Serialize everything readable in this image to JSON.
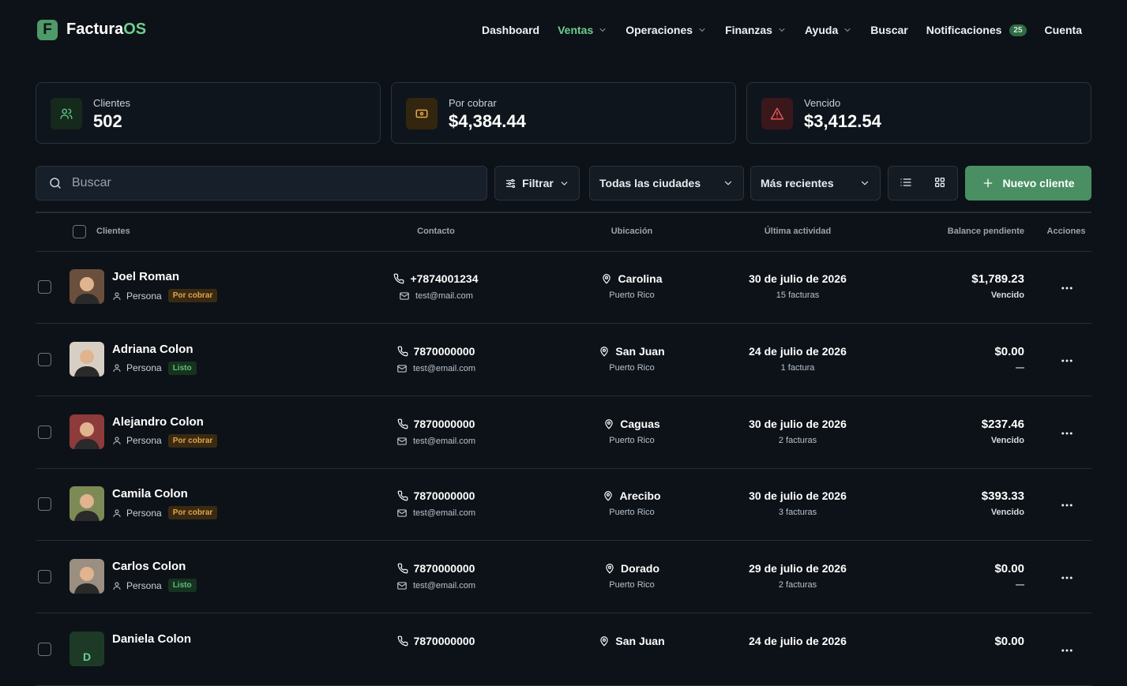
{
  "header": {
    "logo_mark": "F",
    "logo_text": "Factura",
    "logo_accent": "OS",
    "nav": [
      "Dashboard",
      "Ventas",
      "Operaciones",
      "Finanzas",
      "Ayuda",
      "Buscar",
      "Notificaciones",
      "Cuenta"
    ],
    "notifications_badge": "25"
  },
  "stats": [
    {
      "label": "Clientes",
      "value": "502",
      "color": "#5cc07a",
      "bg": "#15291d"
    },
    {
      "label": "Por cobrar",
      "value": "$4,384.44",
      "color": "#e0a54a",
      "bg": "#33260f"
    },
    {
      "label": "Vencido",
      "value": "$3,412.54",
      "color": "#e2585b",
      "bg": "#3a171b"
    }
  ],
  "toolbar": {
    "search": "Buscar",
    "filter": "Filtrar",
    "city": "Todas las ciudades",
    "sort": "Más recientes",
    "new_button": "Nuevo cliente"
  },
  "table": {
    "columns": [
      "Clientes",
      "Contacto",
      "Ubicación",
      "Última actividad",
      "Balance pendiente",
      "Acciones"
    ],
    "rows": [
      {
        "name": "Joel Roman",
        "type": "Persona",
        "status": "Por cobrar",
        "status_color": "#e0a54a",
        "status_bg": "#3a2a12",
        "phone": "+7874001234",
        "email": "test@mail.com",
        "city": "Carolina",
        "country": "Puerto Rico",
        "date": "30 de julio de 2026",
        "invoices": "15 facturas",
        "balance": "$1,789.23",
        "balance_status": "Vencido"
      },
      {
        "name": "Adriana Colon",
        "type": "Persona",
        "status": "Listo",
        "status_color": "#5cc07a",
        "status_bg": "#16331f",
        "phone": "7870000000",
        "email": "test@email.com",
        "city": "San Juan",
        "country": "Puerto Rico",
        "date": "24 de julio de 2026",
        "invoices": "1 factura",
        "balance": "$0.00",
        "balance_status": "—"
      },
      {
        "name": "Alejandro Colon",
        "type": "Persona",
        "status": "Por cobrar",
        "status_color": "#e0a54a",
        "status_bg": "#3a2a12",
        "phone": "7870000000",
        "email": "test@email.com",
        "city": "Caguas",
        "country": "Puerto Rico",
        "date": "30 de julio de 2026",
        "invoices": "2 facturas",
        "balance": "$237.46",
        "balance_status": "Vencido"
      },
      {
        "name": "Camila Colon",
        "type": "Persona",
        "status": "Por cobrar",
        "status_color": "#e0a54a",
        "status_bg": "#3a2a12",
        "phone": "7870000000",
        "email": "test@email.com",
        "city": "Arecibo",
        "country": "Puerto Rico",
        "date": "30 de julio de 2026",
        "invoices": "3 facturas",
        "balance": "$393.33",
        "balance_status": "Vencido"
      },
      {
        "name": "Carlos Colon",
        "type": "Persona",
        "status": "Listo",
        "status_color": "#5cc07a",
        "status_bg": "#16331f",
        "phone": "7870000000",
        "email": "test@email.com",
        "city": "Dorado",
        "country": "Puerto Rico",
        "date": "29 de julio de 2026",
        "invoices": "2 facturas",
        "balance": "$0.00",
        "balance_status": "—"
      },
      {
        "name": "Daniela Colon",
        "initial": "D",
        "phone": "7870000000",
        "city": "San Juan",
        "date": "24 de julio de 2026",
        "balance": "$0.00"
      }
    ]
  }
}
